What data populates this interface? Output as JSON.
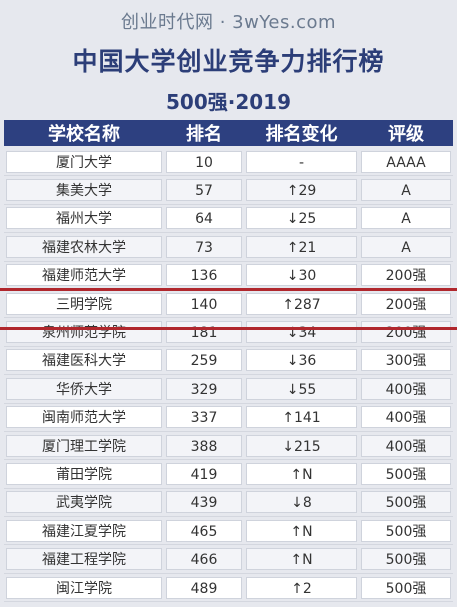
{
  "header": {
    "site": "创业时代网 · 3wYes.com",
    "title": "中国大学创业竞争力排行榜",
    "subtitle": "500强·2019"
  },
  "columns": [
    "学校名称",
    "排名",
    "排名变化",
    "评级"
  ],
  "rows": [
    {
      "name": "厦门大学",
      "rank": "10",
      "change": "-",
      "grade": "AAAA"
    },
    {
      "name": "集美大学",
      "rank": "57",
      "change": "↑29",
      "grade": "A"
    },
    {
      "name": "福州大学",
      "rank": "64",
      "change": "↓25",
      "grade": "A"
    },
    {
      "name": "福建农林大学",
      "rank": "73",
      "change": "↑21",
      "grade": "A"
    },
    {
      "name": "福建师范大学",
      "rank": "136",
      "change": "↓30",
      "grade": "200强"
    },
    {
      "name": "三明学院",
      "rank": "140",
      "change": "↑287",
      "grade": "200强"
    },
    {
      "name": "泉州师范学院",
      "rank": "181",
      "change": "↓34",
      "grade": "200强"
    },
    {
      "name": "福建医科大学",
      "rank": "259",
      "change": "↓36",
      "grade": "300强"
    },
    {
      "name": "华侨大学",
      "rank": "329",
      "change": "↓55",
      "grade": "400强"
    },
    {
      "name": "闽南师范大学",
      "rank": "337",
      "change": "↑141",
      "grade": "400强"
    },
    {
      "name": "厦门理工学院",
      "rank": "388",
      "change": "↓215",
      "grade": "400强"
    },
    {
      "name": "莆田学院",
      "rank": "419",
      "change": "↑N",
      "grade": "500强"
    },
    {
      "name": "武夷学院",
      "rank": "439",
      "change": "↓8",
      "grade": "500强"
    },
    {
      "name": "福建江夏学院",
      "rank": "465",
      "change": "↑N",
      "grade": "500强"
    },
    {
      "name": "福建工程学院",
      "rank": "466",
      "change": "↑N",
      "grade": "500强"
    },
    {
      "name": "闽江学院",
      "rank": "489",
      "change": "↑2",
      "grade": "500强"
    }
  ],
  "colors": {
    "header_bg": "#2d4080",
    "title": "#2c3e78",
    "highlight": "#b0272d"
  }
}
